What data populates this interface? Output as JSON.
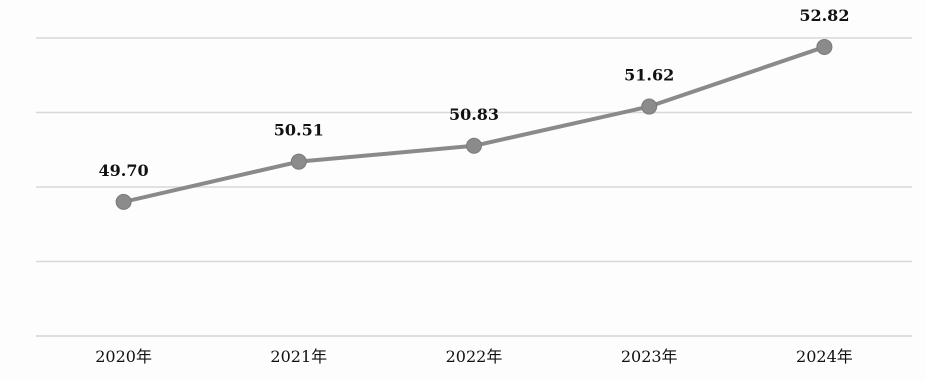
{
  "chart_data": {
    "type": "line",
    "categories": [
      "2020年",
      "2021年",
      "2022年",
      "2023年",
      "2024年"
    ],
    "series": [
      {
        "values": [
          49.7,
          50.51,
          50.83,
          51.62,
          52.82
        ],
        "data_labels": [
          "49.70",
          "50.51",
          "50.83",
          "51.62",
          "52.82"
        ],
        "color": "#8a8a8a"
      }
    ],
    "title": "",
    "xlabel": "",
    "ylabel": "",
    "ylim": [
      47,
      53
    ],
    "grid": true,
    "legend": "none"
  }
}
